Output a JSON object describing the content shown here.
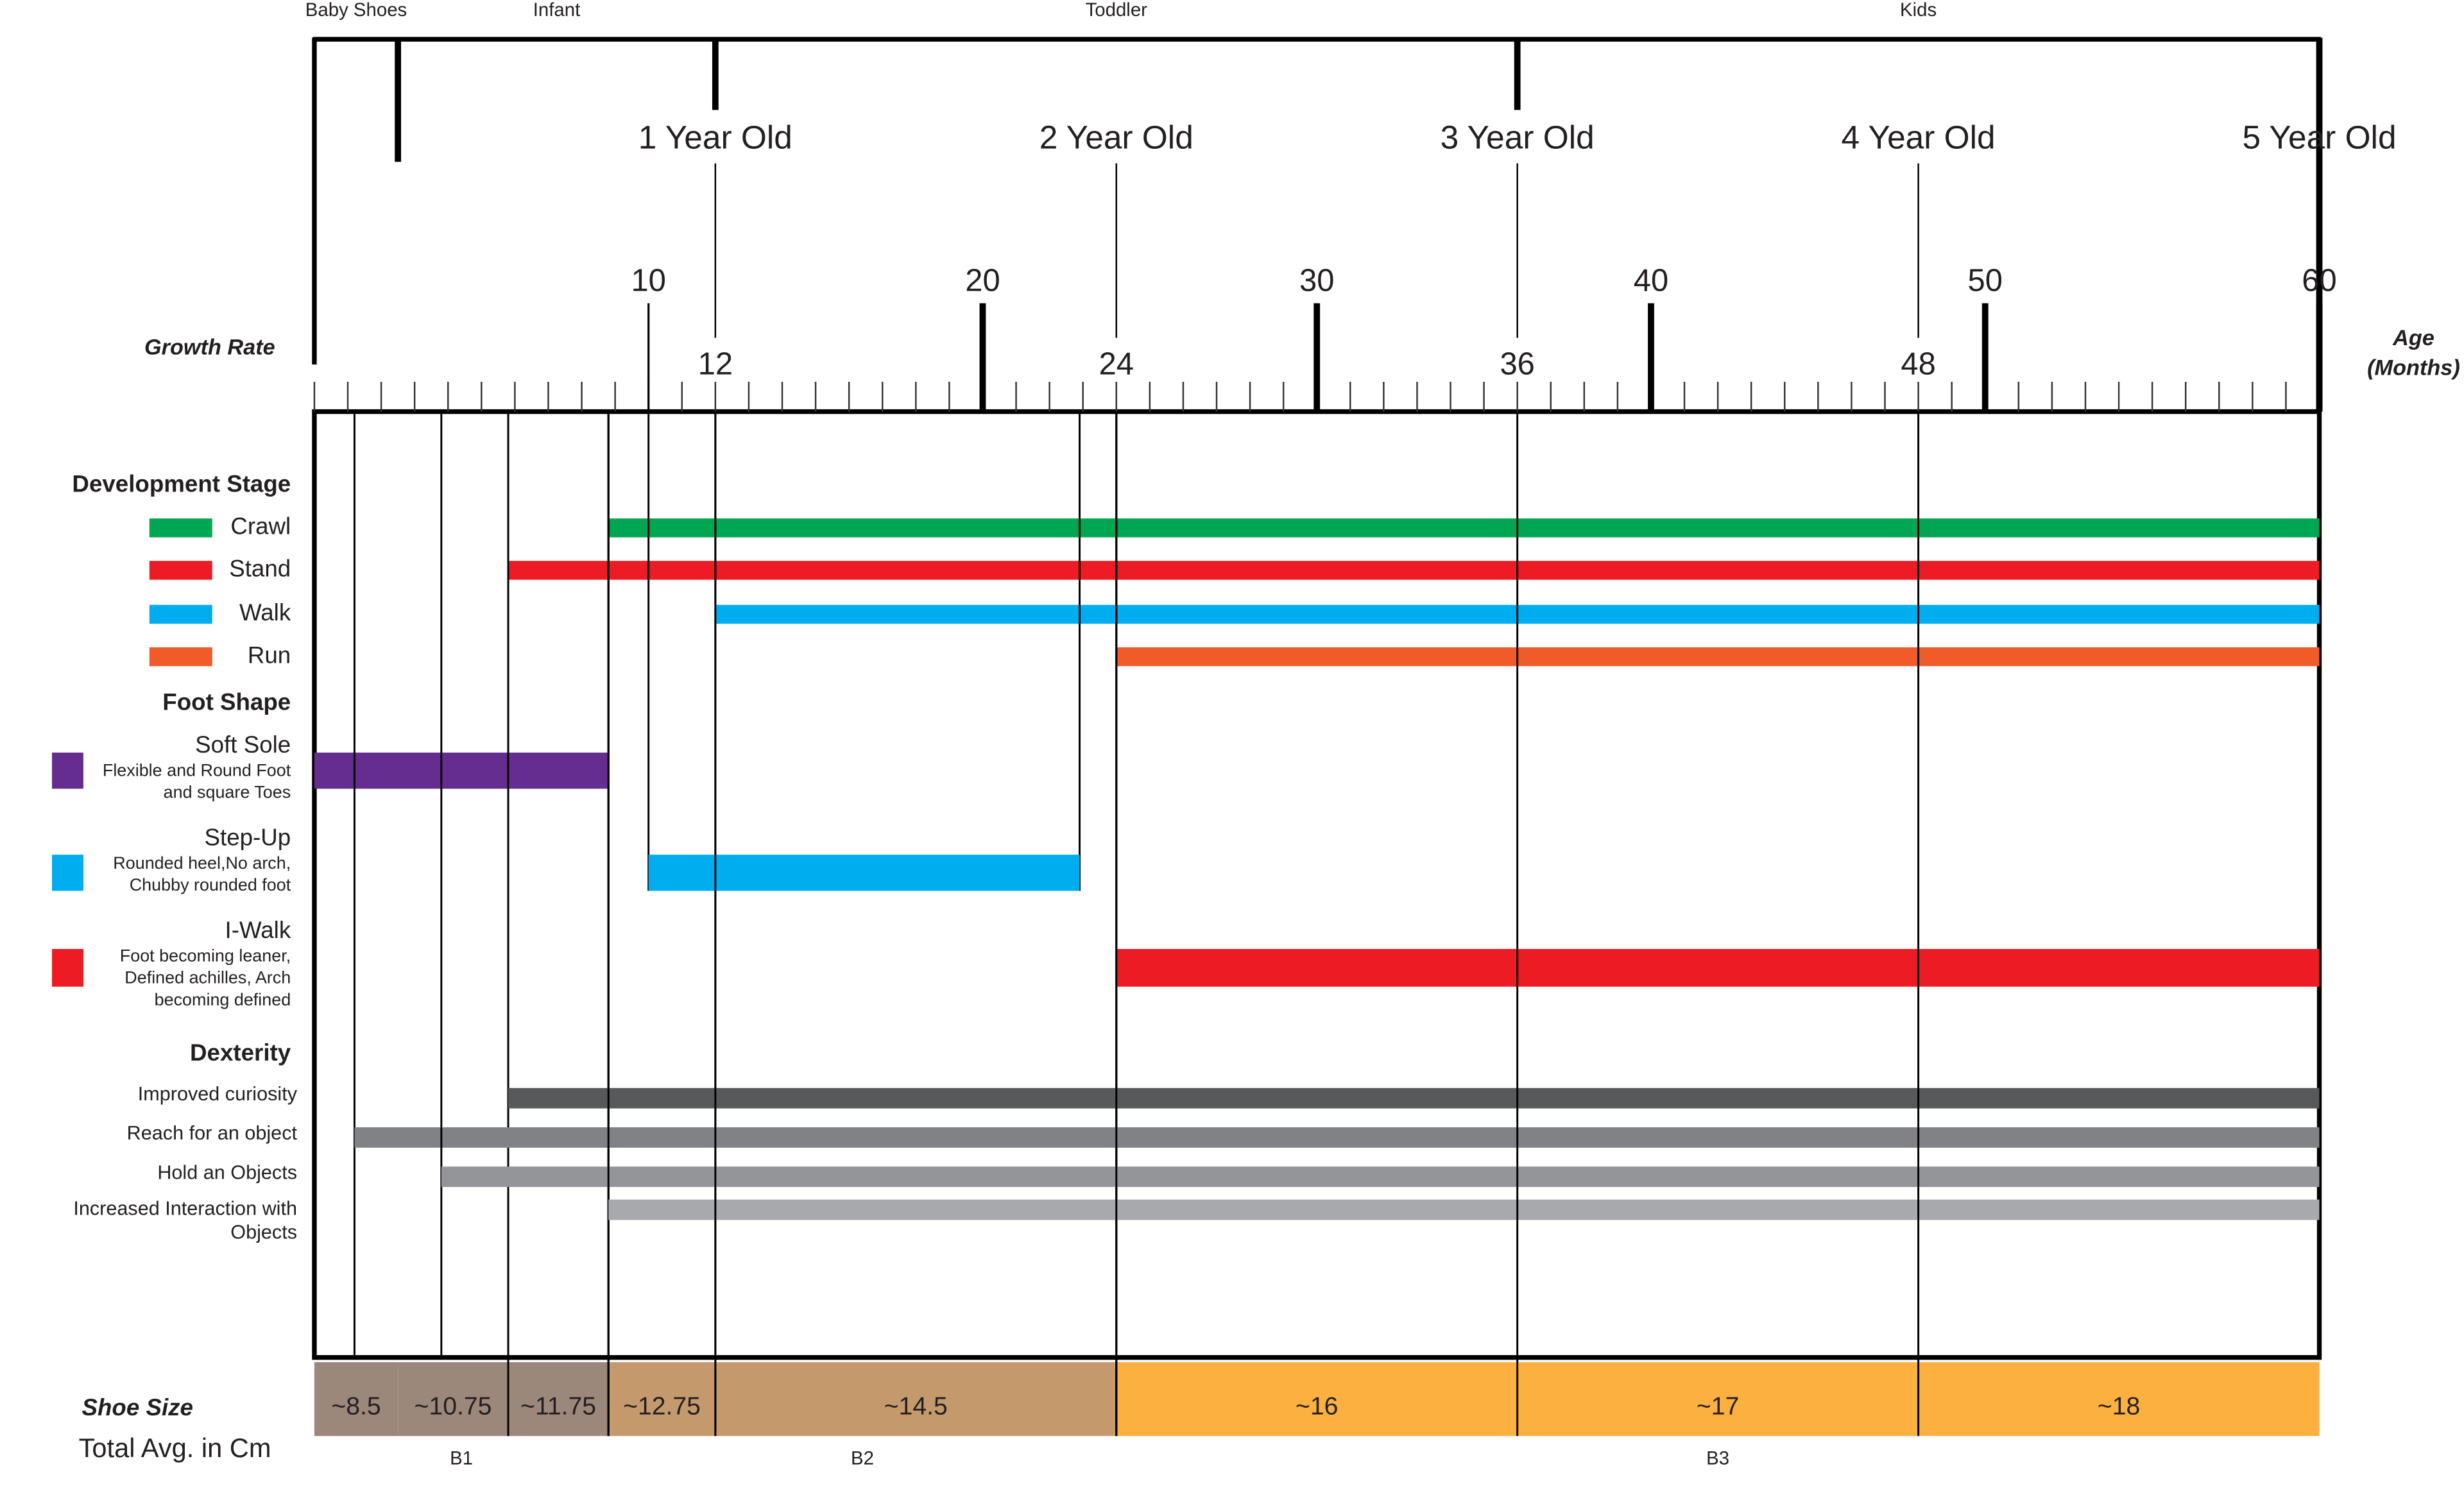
{
  "top_groups": [
    {
      "label": "Baby Shoes",
      "start": 0,
      "end": 2.5
    },
    {
      "label": "Infant",
      "start": 2.5,
      "end": 12
    },
    {
      "label": "Toddler",
      "start": 12,
      "end": 36
    },
    {
      "label": "Kids",
      "start": 36,
      "end": 60
    }
  ],
  "year_markers": [
    {
      "label": "1 Year Old",
      "month": 12
    },
    {
      "label": "2 Year Old",
      "month": 24
    },
    {
      "label": "3 Year Old",
      "month": 36
    },
    {
      "label": "4 Year Old",
      "month": 48
    },
    {
      "label": "5 Year Old",
      "month": 60
    }
  ],
  "axis": {
    "left_label": "Growth Rate",
    "right_label": [
      "Age",
      "(Months)"
    ],
    "xlim": [
      0,
      60
    ],
    "major_ticks": [
      10,
      20,
      30,
      40,
      50,
      60
    ],
    "year_ticks": [
      12,
      24,
      36,
      48
    ]
  },
  "sections": [
    {
      "title": "Development Stage",
      "items": [
        {
          "name": "Crawl",
          "color": "#00a651",
          "start": 8.8,
          "end": 60
        },
        {
          "name": "Stand",
          "color": "#ed1c24",
          "start": 5.8,
          "end": 60
        },
        {
          "name": "Walk",
          "color": "#00aeef",
          "start": 12,
          "end": 60
        },
        {
          "name": "Run",
          "color": "#f15a29",
          "start": 24,
          "end": 60
        }
      ]
    },
    {
      "title": "Foot Shape",
      "items": [
        {
          "name": "Soft Sole",
          "description": [
            "Flexible and Round Foot",
            "and square Toes"
          ],
          "color": "#662d91",
          "start": 0,
          "end": 8.8
        },
        {
          "name": "Step-Up",
          "description": [
            "Rounded heel,No arch,",
            "Chubby rounded foot"
          ],
          "color": "#00aeef",
          "start": 10,
          "end": 22.9
        },
        {
          "name": "I-Walk",
          "description": [
            "Foot becoming leaner,",
            "Defined achilles, Arch",
            "becoming defined"
          ],
          "color": "#ed1c24",
          "start": 24,
          "end": 60
        }
      ]
    },
    {
      "title": "Dexterity",
      "items": [
        {
          "name": [
            "Improved curiosity"
          ],
          "color": "#58595b",
          "start": 5.8,
          "end": 60
        },
        {
          "name": [
            "Reach for an object"
          ],
          "color": "#808285",
          "start": 1.2,
          "end": 60
        },
        {
          "name": [
            "Hold an Objects"
          ],
          "color": "#939598",
          "start": 3.8,
          "end": 60
        },
        {
          "name": [
            "Increased Interaction  with",
            "Objects"
          ],
          "color": "#a7a9ac",
          "start": 8.8,
          "end": 60
        }
      ]
    }
  ],
  "shoe_size": {
    "title": "Shoe Size",
    "subtitle": "Total Avg. in Cm",
    "cells": [
      {
        "label": "~8.5",
        "start": 0,
        "end": 2.5,
        "color": "#9c877b"
      },
      {
        "label": "~10.75",
        "start": 2.5,
        "end": 5.8,
        "color": "#9c877b"
      },
      {
        "label": "~11.75",
        "start": 5.8,
        "end": 8.8,
        "color": "#9c877b"
      },
      {
        "label": "~12.75",
        "start": 8.8,
        "end": 12,
        "color": "#c49a6c"
      },
      {
        "label": "~14.5",
        "start": 12,
        "end": 24,
        "color": "#c49a6c"
      },
      {
        "label": "~16",
        "start": 24,
        "end": 36,
        "color": "#fbb040"
      },
      {
        "label": "~17",
        "start": 36,
        "end": 48,
        "color": "#fbb040"
      },
      {
        "label": "~18",
        "start": 48,
        "end": 60,
        "color": "#fbb040"
      }
    ],
    "groups": [
      {
        "label": "B1",
        "start": 0,
        "end": 8.8
      },
      {
        "label": "B2",
        "start": 8.8,
        "end": 24
      },
      {
        "label": "B3",
        "start": 24,
        "end": 60
      }
    ]
  }
}
